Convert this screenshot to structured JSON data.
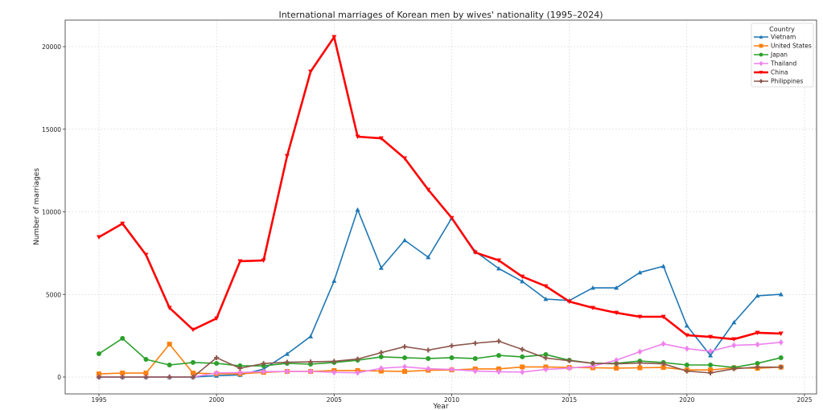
{
  "chart_data": {
    "type": "line",
    "title": "International marriages of Korean men by wives' nationality (1995–2024)",
    "xlabel": "Year",
    "ylabel": "Number of marriages",
    "xlim": [
      1993.5,
      2025.5
    ],
    "ylim": [
      -1000,
      21600
    ],
    "xticks": [
      1995,
      2000,
      2005,
      2010,
      2015,
      2020,
      2025
    ],
    "yticks": [
      0,
      5000,
      10000,
      15000,
      20000
    ],
    "grid": true,
    "legend": {
      "title": "Country",
      "placement": "top-right"
    },
    "x": [
      1995,
      1996,
      1997,
      1998,
      1999,
      2000,
      2001,
      2002,
      2003,
      2004,
      2005,
      2006,
      2007,
      2008,
      2009,
      2010,
      2011,
      2012,
      2013,
      2014,
      2015,
      2016,
      2017,
      2018,
      2019,
      2020,
      2021,
      2022,
      2023,
      2024
    ],
    "series": [
      {
        "name": "Vietnam",
        "color": "#1f77b4",
        "marker": "triangle-up",
        "values": [
          0,
          0,
          0,
          0,
          0,
          80,
          130,
          480,
          1400,
          2460,
          5820,
          10130,
          6610,
          8280,
          7250,
          9620,
          7600,
          6570,
          5790,
          4720,
          4630,
          5400,
          5400,
          6330,
          6710,
          3110,
          1310,
          3310,
          4920,
          5010
        ]
      },
      {
        "name": "United States",
        "color": "#ff7f0e",
        "marker": "square",
        "values": [
          190,
          240,
          240,
          1990,
          240,
          200,
          200,
          280,
          340,
          340,
          390,
          390,
          360,
          340,
          410,
          430,
          490,
          490,
          610,
          610,
          580,
          560,
          540,
          560,
          580,
          430,
          430,
          560,
          530,
          600
        ]
      },
      {
        "name": "Japan",
        "color": "#2ca02c",
        "marker": "circle",
        "values": [
          1410,
          2340,
          1070,
          730,
          880,
          830,
          680,
          680,
          830,
          780,
          880,
          1020,
          1220,
          1170,
          1120,
          1170,
          1120,
          1310,
          1220,
          1360,
          1020,
          830,
          830,
          970,
          880,
          730,
          730,
          580,
          830,
          1170
        ]
      },
      {
        "name": "Thailand",
        "color": "#ee82ee",
        "marker": "diamond",
        "values": [
          0,
          0,
          0,
          0,
          0,
          250,
          270,
          330,
          340,
          340,
          280,
          260,
          530,
          620,
          500,
          460,
          360,
          320,
          300,
          460,
          540,
          660,
          1020,
          1530,
          2010,
          1720,
          1560,
          1920,
          1970,
          2100
        ]
      },
      {
        "name": "China",
        "color": "#ff0000",
        "marker": "triangle-down",
        "values": [
          8470,
          9290,
          7400,
          4190,
          2870,
          3550,
          7010,
          7060,
          13380,
          18490,
          20580,
          14550,
          14450,
          13240,
          11340,
          9630,
          7540,
          7060,
          6080,
          5500,
          4570,
          4190,
          3890,
          3650,
          3650,
          2530,
          2430,
          2290,
          2680,
          2630
        ]
      },
      {
        "name": "Philippines",
        "color": "#8c564b",
        "marker": "plus",
        "values": [
          0,
          0,
          0,
          0,
          0,
          1170,
          530,
          820,
          900,
          920,
          950,
          1090,
          1480,
          1840,
          1630,
          1890,
          2050,
          2170,
          1670,
          1150,
          990,
          830,
          800,
          850,
          800,
          360,
          250,
          500,
          600,
          600
        ]
      }
    ]
  }
}
